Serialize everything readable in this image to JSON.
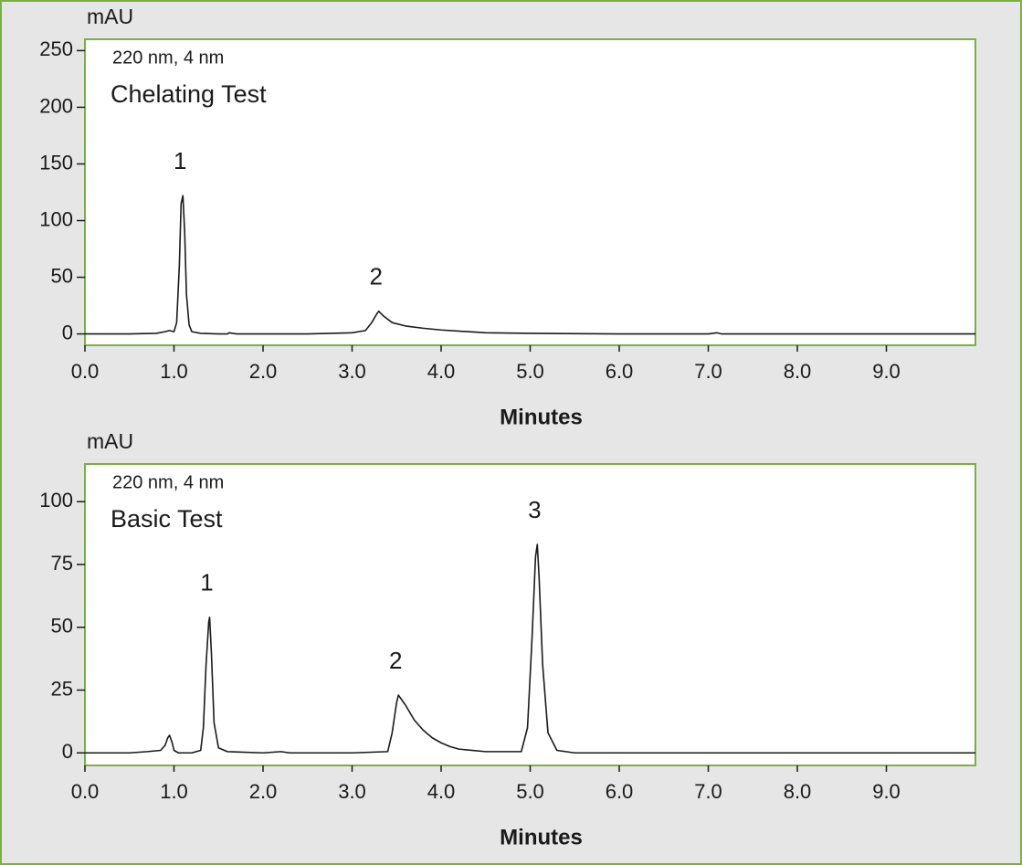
{
  "chart_data": [
    {
      "type": "line",
      "title": "Chelating Test",
      "subtitle": "220 nm, 4 nm",
      "y_label": "mAU",
      "x_label": "Minutes",
      "x": [
        0,
        0.5,
        0.8,
        0.9,
        0.95,
        1.0,
        1.03,
        1.06,
        1.08,
        1.1,
        1.12,
        1.14,
        1.17,
        1.2,
        1.3,
        1.5,
        1.6,
        1.62,
        1.7,
        2.0,
        2.5,
        3.0,
        3.15,
        3.22,
        3.28,
        3.3,
        3.35,
        3.45,
        3.6,
        3.8,
        4.0,
        4.3,
        4.5,
        5.0,
        6.0,
        7.0,
        7.1,
        7.15,
        8.0,
        9.0,
        10
      ],
      "values": [
        0,
        0,
        0.5,
        2,
        3,
        2,
        10,
        60,
        115,
        122,
        90,
        35,
        8,
        2,
        0.5,
        0,
        0,
        1,
        0,
        0,
        0,
        1,
        3,
        10,
        18,
        20,
        16,
        10,
        7,
        5,
        3.5,
        2,
        1,
        0.5,
        0,
        0,
        1,
        0,
        0,
        0,
        0
      ],
      "color": "#1a1a1a",
      "annotations": [
        {
          "text": "1",
          "x": 1.1,
          "y": 122
        },
        {
          "text": "2",
          "x": 3.3,
          "y": 20
        }
      ],
      "xlim": [
        0,
        10
      ],
      "xticks": [
        {
          "value": 0,
          "label": "0.0"
        },
        {
          "value": 1,
          "label": "1.0"
        },
        {
          "value": 2,
          "label": "2.0"
        },
        {
          "value": 3,
          "label": "3.0"
        },
        {
          "value": 4,
          "label": "4.0"
        },
        {
          "value": 5,
          "label": "5.0"
        },
        {
          "value": 6,
          "label": "6.0"
        },
        {
          "value": 7,
          "label": "7.0"
        },
        {
          "value": 8,
          "label": "8.0"
        },
        {
          "value": 9,
          "label": "9.0"
        }
      ],
      "ylim": [
        -10,
        260
      ],
      "yticks": [
        0,
        50,
        100,
        150,
        200,
        250
      ]
    },
    {
      "type": "line",
      "title": "Basic Test",
      "subtitle": "220 nm, 4 nm",
      "y_label": "mAU",
      "x_label": "Minutes",
      "x": [
        0,
        0.5,
        0.7,
        0.85,
        0.9,
        0.93,
        0.95,
        0.98,
        1.0,
        1.05,
        1.2,
        1.3,
        1.33,
        1.36,
        1.39,
        1.4,
        1.42,
        1.45,
        1.5,
        1.6,
        2.0,
        2.2,
        2.3,
        3.0,
        3.4,
        3.45,
        3.5,
        3.52,
        3.6,
        3.7,
        3.8,
        3.9,
        4.0,
        4.1,
        4.2,
        4.5,
        4.9,
        4.97,
        5.02,
        5.06,
        5.08,
        5.1,
        5.14,
        5.2,
        5.3,
        5.5,
        6,
        10
      ],
      "values": [
        0,
        0,
        0.5,
        1,
        3,
        6,
        7,
        4,
        1,
        0,
        0,
        1,
        10,
        35,
        52,
        54,
        40,
        12,
        2,
        0.5,
        0,
        0.5,
        0,
        0,
        0.5,
        8,
        20,
        23,
        19,
        13,
        9,
        6,
        4,
        2.5,
        1.5,
        0.5,
        0.5,
        10,
        45,
        78,
        83,
        70,
        35,
        8,
        1,
        0,
        0,
        0
      ],
      "color": "#1a1a1a",
      "annotations": [
        {
          "text": "1",
          "x": 1.4,
          "y": 54
        },
        {
          "text": "2",
          "x": 3.52,
          "y": 23
        },
        {
          "text": "3",
          "x": 5.08,
          "y": 83
        }
      ],
      "xlim": [
        0,
        10
      ],
      "xticks": [
        {
          "value": 0,
          "label": "0.0"
        },
        {
          "value": 1,
          "label": "1.0"
        },
        {
          "value": 2,
          "label": "2.0"
        },
        {
          "value": 3,
          "label": "3.0"
        },
        {
          "value": 4,
          "label": "4.0"
        },
        {
          "value": 5,
          "label": "5.0"
        },
        {
          "value": 6,
          "label": "6.0"
        },
        {
          "value": 7,
          "label": "7.0"
        },
        {
          "value": 8,
          "label": "8.0"
        },
        {
          "value": 9,
          "label": "9.0"
        }
      ],
      "ylim": [
        -5,
        115
      ],
      "yticks": [
        0,
        25,
        50,
        75,
        100
      ]
    }
  ]
}
